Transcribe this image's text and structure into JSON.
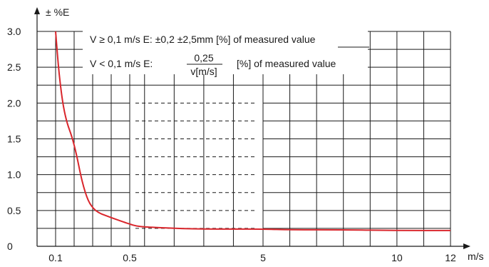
{
  "chart_data": {
    "type": "line",
    "ylabel": "± %E",
    "xlabel": "m/s",
    "x_axis": {
      "scale": "segmented",
      "tick_labels": [
        "0.1",
        "0.5",
        "5",
        "10",
        "12"
      ],
      "grid_values": [
        0.1,
        0.2,
        0.3,
        0.4,
        0.5,
        1,
        2,
        3,
        4,
        5,
        6,
        7,
        8,
        9,
        10,
        11,
        12
      ],
      "dashed_region": [
        0.5,
        5
      ]
    },
    "y_axis": {
      "tick_labels": [
        "0",
        "0.5",
        "1.0",
        "1.5",
        "2.0",
        "2.5",
        "3.0"
      ],
      "ylim": [
        0,
        3.0
      ],
      "grid_step": 0.25
    },
    "series": [
      {
        "x": [
          0.1,
          0.12,
          0.15,
          0.2,
          0.25,
          0.3,
          0.4,
          0.5,
          0.75,
          1,
          2,
          3,
          4,
          5,
          6,
          8,
          10,
          12
        ],
        "y": [
          3.0,
          2.35,
          1.8,
          1.45,
          0.8,
          0.5,
          0.4,
          0.31,
          0.28,
          0.27,
          0.25,
          0.24,
          0.24,
          0.24,
          0.23,
          0.23,
          0.22,
          0.22
        ],
        "color": "#d9262c"
      }
    ],
    "annotations": {
      "line1": "V ≥ 0,1 m/s E: ±0,2 ±2,5mm  [%] of measured value",
      "line2_prefix": "V < 0,1 m/s E:",
      "line2_numerator": "0,25",
      "line2_denominator": "v[m/s]",
      "line2_suffix": "[%] of measured value"
    },
    "grid": true,
    "legend": "none"
  }
}
